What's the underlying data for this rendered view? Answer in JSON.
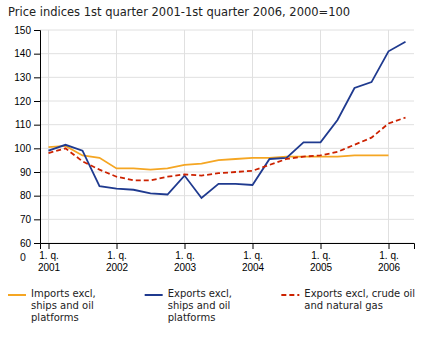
{
  "chart_data": {
    "type": "line",
    "title": "Price indices 1st quarter 2001-1st quarter 2006, 2000=100",
    "categories": [
      "1. q.\n2001",
      null,
      null,
      null,
      "1. q.\n2002",
      null,
      null,
      null,
      "1. q.\n2003",
      null,
      null,
      null,
      "1. q.\n2004",
      null,
      null,
      null,
      "1. q.\n2005",
      null,
      null,
      null,
      "1. q.\n2006",
      null
    ],
    "series": [
      {
        "name": "Imports excl,\nships and oil\nplatforms",
        "color": "#f5a623",
        "line_style": "solid",
        "values": [
          100.5,
          101.0,
          97.0,
          96.0,
          91.5,
          91.5,
          91.0,
          91.5,
          93.0,
          93.5,
          95.0,
          95.5,
          96.0,
          96.0,
          96.5,
          96.5,
          96.5,
          96.5,
          97.0,
          97.0,
          97.0,
          null
        ]
      },
      {
        "name": "Exports excl,\nships and oil\nplatforms",
        "color": "#1f3a8f",
        "line_style": "solid",
        "values": [
          99.0,
          101.5,
          99.0,
          84.0,
          83.0,
          82.5,
          81.0,
          80.5,
          88.5,
          79.0,
          85.0,
          85.0,
          84.5,
          95.5,
          96.0,
          102.5,
          102.5,
          112.0,
          125.5,
          128.0,
          141.0,
          145.0
        ]
      },
      {
        "name": "Exports excl, crude oil\nand natural gas",
        "color": "#cc2200",
        "line_style": "dashed",
        "values": [
          98.0,
          100.0,
          94.5,
          91.0,
          88.0,
          86.5,
          86.5,
          88.0,
          89.0,
          88.5,
          89.5,
          90.0,
          90.5,
          93.0,
          95.5,
          96.5,
          97.0,
          98.5,
          101.5,
          104.5,
          110.5,
          113.0
        ]
      }
    ],
    "ylim": [
      60,
      150
    ],
    "yticks": [
      60,
      70,
      80,
      90,
      100,
      110,
      120,
      130,
      140,
      150
    ],
    "grid": true,
    "legend": "bottom",
    "annotations": [
      "0"
    ]
  }
}
